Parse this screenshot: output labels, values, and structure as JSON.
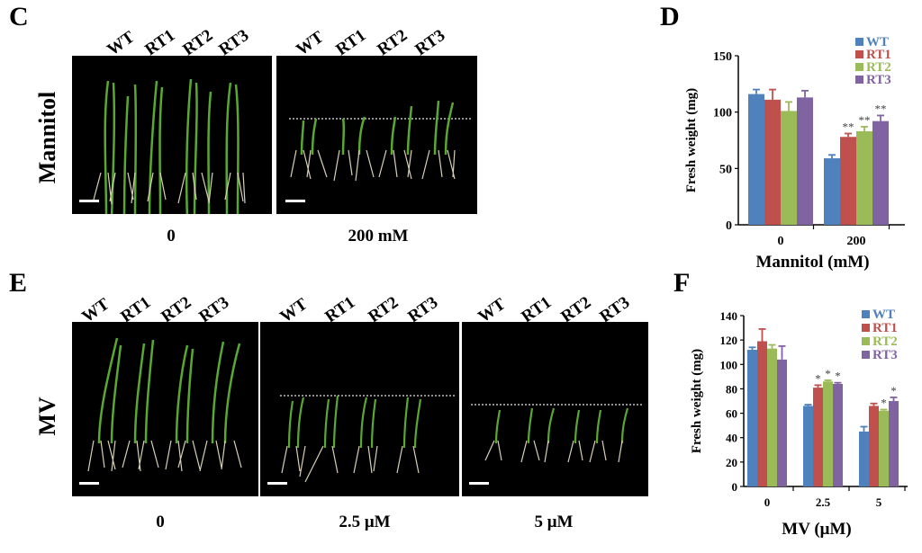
{
  "panel_letters": {
    "C": "C",
    "D": "D",
    "E": "E",
    "F": "F"
  },
  "genotypes": [
    "WT",
    "RT1",
    "RT2",
    "RT3"
  ],
  "panelC": {
    "treatment": "Mannitol",
    "conditions": [
      "0",
      "200 mM"
    ]
  },
  "panelE": {
    "treatment": "MV",
    "conditions": [
      "0",
      "2.5 μM",
      "5 μM"
    ]
  },
  "colors": {
    "WT": "#4f81bd",
    "RT1": "#c0504d",
    "RT2": "#9bbb59",
    "RT3": "#8064a2"
  },
  "chart_data": [
    {
      "type": "bar",
      "panel": "D",
      "categories": [
        "0",
        "200"
      ],
      "series": [
        {
          "name": "WT",
          "values": [
            116,
            59
          ],
          "errors": [
            4,
            3
          ]
        },
        {
          "name": "RT1",
          "values": [
            111,
            78
          ],
          "errors": [
            9,
            3
          ]
        },
        {
          "name": "RT2",
          "values": [
            101,
            83
          ],
          "errors": [
            8,
            4
          ]
        },
        {
          "name": "RT3",
          "values": [
            113,
            92
          ],
          "errors": [
            6,
            5
          ]
        }
      ],
      "significance": [
        [],
        [
          "",
          "**",
          "**",
          "**"
        ]
      ],
      "xlabel": "Mannitol (mM)",
      "ylabel": "Fresh weight (mg)",
      "ylim": [
        0,
        150
      ],
      "yticks": [
        0,
        50,
        100,
        150
      ],
      "legend": "top-right"
    },
    {
      "type": "bar",
      "panel": "F",
      "categories": [
        "0",
        "2.5",
        "5"
      ],
      "series": [
        {
          "name": "WT",
          "values": [
            112,
            66,
            45
          ],
          "errors": [
            2,
            1,
            4
          ]
        },
        {
          "name": "RT1",
          "values": [
            119,
            81,
            66
          ],
          "errors": [
            10,
            2,
            2
          ]
        },
        {
          "name": "RT2",
          "values": [
            113,
            86,
            62
          ],
          "errors": [
            3,
            1,
            1
          ]
        },
        {
          "name": "RT3",
          "values": [
            104,
            84,
            70
          ],
          "errors": [
            11,
            1,
            3
          ]
        }
      ],
      "significance": [
        [],
        [
          "",
          "*",
          "*",
          "*"
        ],
        [
          "",
          "",
          "*",
          "*"
        ]
      ],
      "xlabel": "MV (μM)",
      "ylabel": "Fresh weight (mg)",
      "ylim": [
        0,
        140
      ],
      "yticks": [
        0,
        20,
        40,
        60,
        80,
        100,
        120,
        140
      ],
      "legend": "top-right"
    }
  ]
}
